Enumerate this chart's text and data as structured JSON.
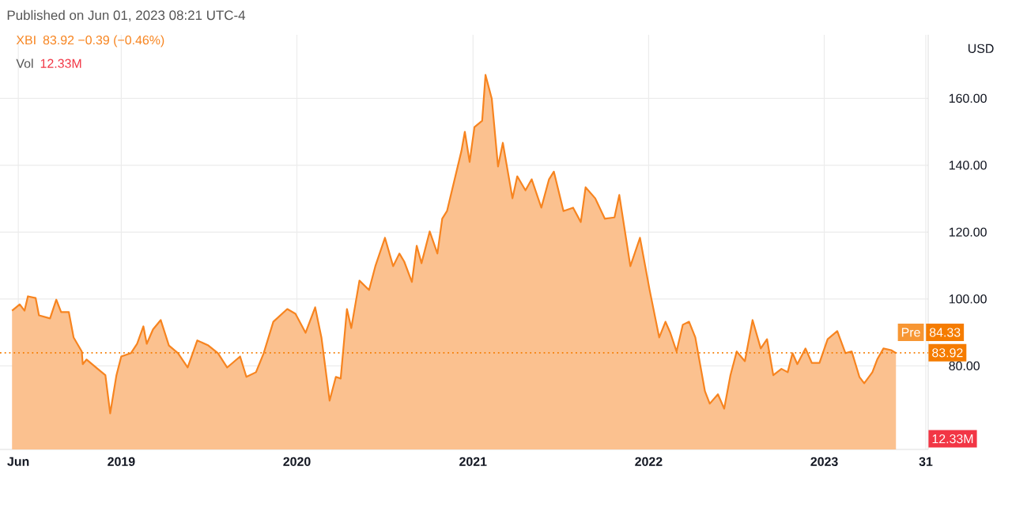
{
  "chart_data": {
    "type": "area",
    "title": "Published on Jun 01, 2023 08:21 UTC-4",
    "ylabel": "USD",
    "xlim": [
      "2018-04-24",
      "2023-08-05"
    ],
    "ylim": [
      55,
      179
    ],
    "xticks": [
      {
        "value": "2018-06-01",
        "label": "Jun"
      },
      {
        "value": "2019-01-01",
        "label": "2019"
      },
      {
        "value": "2020-01-01",
        "label": "2020"
      },
      {
        "value": "2021-01-01",
        "label": "2021"
      },
      {
        "value": "2022-01-01",
        "label": "2022"
      },
      {
        "value": "2023-01-01",
        "label": "2023"
      },
      {
        "value": "2023-07-31",
        "label": "31"
      }
    ],
    "yticks": [
      {
        "value": 80,
        "label": "80.00"
      },
      {
        "value": 100,
        "label": "100.00"
      },
      {
        "value": 120,
        "label": "120.00"
      },
      {
        "value": 140,
        "label": "140.00"
      },
      {
        "value": 160,
        "label": "160.00"
      }
    ],
    "grid": true,
    "ref_lines": [
      {
        "axis": "y",
        "value": 83.92,
        "label": "83.92",
        "color": "#f57c00",
        "line_style": "dotted"
      }
    ],
    "annotations": [
      "83.92 −0.39 (−0.46%)",
      "Vol",
      "12.33M",
      "12.33M",
      {
        "text": "Pre",
        "x": "2023-05-30",
        "y": 84.33
      },
      "84.33"
    ],
    "series": [
      {
        "name": "XBI",
        "color": "#f7841f",
        "x": [
          "2018-05-19",
          "2018-06-04",
          "2018-06-14",
          "2018-06-21",
          "2018-07-07",
          "2018-07-14",
          "2018-08-06",
          "2018-08-19",
          "2018-08-29",
          "2018-09-14",
          "2018-09-24",
          "2018-10-11",
          "2018-10-13",
          "2018-10-21",
          "2018-11-13",
          "2018-11-29",
          "2018-12-09",
          "2018-12-22",
          "2019-01-01",
          "2019-01-21",
          "2019-02-03",
          "2019-02-16",
          "2019-02-23",
          "2019-03-08",
          "2019-03-24",
          "2019-04-10",
          "2019-04-29",
          "2019-05-19",
          "2019-06-08",
          "2019-07-01",
          "2019-07-21",
          "2019-08-09",
          "2019-09-05",
          "2019-09-18",
          "2019-10-08",
          "2019-10-24",
          "2019-11-13",
          "2019-12-12",
          "2019-12-29",
          "2020-01-19",
          "2020-02-08",
          "2020-02-21",
          "2020-03-09",
          "2020-03-22",
          "2020-04-01",
          "2020-04-14",
          "2020-04-23",
          "2020-05-10",
          "2020-05-30",
          "2020-06-12",
          "2020-07-02",
          "2020-07-19",
          "2020-08-01",
          "2020-08-11",
          "2020-08-27",
          "2020-09-06",
          "2020-09-16",
          "2020-10-03",
          "2020-10-19",
          "2020-10-29",
          "2020-11-08",
          "2020-12-08",
          "2020-12-15",
          "2020-12-25",
          "2021-01-04",
          "2021-01-20",
          "2021-01-27",
          "2021-02-09",
          "2021-02-22",
          "2021-03-04",
          "2021-03-24",
          "2021-04-03",
          "2021-04-20",
          "2021-05-03",
          "2021-05-23",
          "2021-06-08",
          "2021-06-18",
          "2021-07-08",
          "2021-07-28",
          "2021-08-13",
          "2021-08-23",
          "2021-09-12",
          "2021-10-02",
          "2021-10-22",
          "2021-11-01",
          "2021-11-24",
          "2021-12-14",
          "2022-01-03",
          "2022-01-23",
          "2022-02-05",
          "2022-02-15",
          "2022-02-28",
          "2022-03-13",
          "2022-03-26",
          "2022-04-08",
          "2022-04-28",
          "2022-05-08",
          "2022-05-25",
          "2022-06-07",
          "2022-06-20",
          "2022-07-03",
          "2022-07-20",
          "2022-08-05",
          "2022-08-22",
          "2022-09-04",
          "2022-09-17",
          "2022-10-04",
          "2022-10-17",
          "2022-10-27",
          "2022-11-06",
          "2022-11-23",
          "2022-12-06",
          "2022-12-22",
          "2023-01-08",
          "2023-01-28",
          "2023-02-14",
          "2023-02-27",
          "2023-03-15",
          "2023-03-25",
          "2023-04-11",
          "2023-04-21",
          "2023-05-04",
          "2023-05-20",
          "2023-05-30"
        ],
        "values": [
          96.5,
          98.4,
          96.5,
          100.8,
          100.3,
          95.1,
          94.2,
          99.8,
          96.1,
          96.1,
          88.5,
          84.3,
          80.5,
          81.9,
          79.1,
          77.2,
          65.8,
          77.2,
          82.8,
          83.8,
          86.6,
          91.8,
          86.6,
          90.9,
          93.7,
          86.1,
          83.8,
          79.5,
          87.6,
          86.1,
          83.8,
          79.5,
          82.8,
          76.7,
          78.1,
          83.8,
          93.2,
          97.0,
          95.6,
          89.9,
          97.5,
          88.5,
          69.6,
          76.7,
          76.2,
          97.0,
          91.3,
          105.5,
          102.7,
          109.8,
          118.3,
          109.8,
          113.6,
          111.2,
          105.1,
          115.9,
          110.7,
          120.2,
          113.6,
          124.0,
          126.3,
          144.3,
          150.0,
          141.0,
          151.4,
          153.3,
          167.0,
          159.9,
          139.6,
          146.7,
          130.1,
          136.7,
          132.5,
          135.8,
          127.3,
          135.8,
          138.1,
          126.3,
          127.3,
          123.0,
          133.4,
          130.1,
          124.0,
          124.4,
          131.1,
          109.8,
          118.3,
          102.7,
          88.5,
          93.2,
          89.9,
          84.3,
          92.3,
          93.2,
          88.5,
          72.4,
          68.7,
          71.5,
          67.2,
          77.2,
          84.3,
          81.4,
          93.7,
          85.2,
          88.0,
          77.2,
          79.1,
          78.1,
          83.8,
          80.5,
          85.2,
          80.9,
          80.9,
          88.0,
          90.4,
          83.8,
          84.3,
          76.7,
          74.8,
          78.1,
          81.9,
          85.2,
          84.7,
          83.8
        ]
      }
    ]
  }
}
